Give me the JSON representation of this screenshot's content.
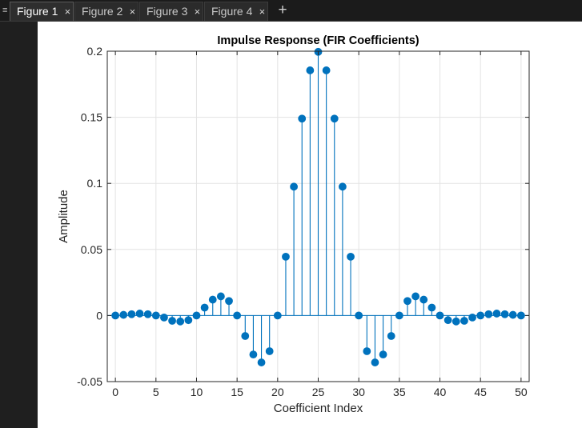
{
  "window": {
    "tabs": [
      {
        "label": "Figure 1",
        "active": true
      },
      {
        "label": "Figure 2",
        "active": false
      },
      {
        "label": "Figure 3",
        "active": false
      },
      {
        "label": "Figure 4",
        "active": false
      }
    ],
    "close_glyph": "×",
    "add_glyph": "+",
    "menu_glyph": "≡"
  },
  "chart_data": {
    "type": "stem",
    "title": "Impulse Response (FIR Coefficients)",
    "xlabel": "Coefficient Index",
    "ylabel": "Amplitude",
    "xlim": [
      -1,
      51
    ],
    "ylim": [
      -0.05,
      0.2
    ],
    "xticks": [
      0,
      5,
      10,
      15,
      20,
      25,
      30,
      35,
      40,
      45,
      50
    ],
    "yticks": [
      -0.05,
      0,
      0.05,
      0.1,
      0.15,
      0.2
    ],
    "ytick_labels": [
      "-0.05",
      "0",
      "0.05",
      "0.1",
      "0.15",
      "0.2"
    ],
    "grid": true,
    "color": "#0072BD",
    "x": [
      0,
      1,
      2,
      3,
      4,
      5,
      6,
      7,
      8,
      9,
      10,
      11,
      12,
      13,
      14,
      15,
      16,
      17,
      18,
      19,
      20,
      21,
      22,
      23,
      24,
      25,
      26,
      27,
      28,
      29,
      30,
      31,
      32,
      33,
      34,
      35,
      36,
      37,
      38,
      39,
      40,
      41,
      42,
      43,
      44,
      45,
      46,
      47,
      48,
      49,
      50
    ],
    "values": [
      0,
      0.0005,
      0.001,
      0.0015,
      0.001,
      0,
      -0.0015,
      -0.004,
      -0.0045,
      -0.0035,
      0,
      0.006,
      0.012,
      0.0145,
      0.011,
      0,
      -0.0155,
      -0.0295,
      -0.0355,
      -0.027,
      0,
      0.0445,
      0.0975,
      0.149,
      0.1855,
      0.1995,
      0.1855,
      0.149,
      0.0975,
      0.0445,
      0,
      -0.027,
      -0.0355,
      -0.0295,
      -0.0155,
      0,
      0.011,
      0.0145,
      0.012,
      0.006,
      0,
      -0.0035,
      -0.0045,
      -0.004,
      -0.0015,
      0,
      0.001,
      0.0015,
      0.001,
      0.0005,
      0
    ]
  }
}
